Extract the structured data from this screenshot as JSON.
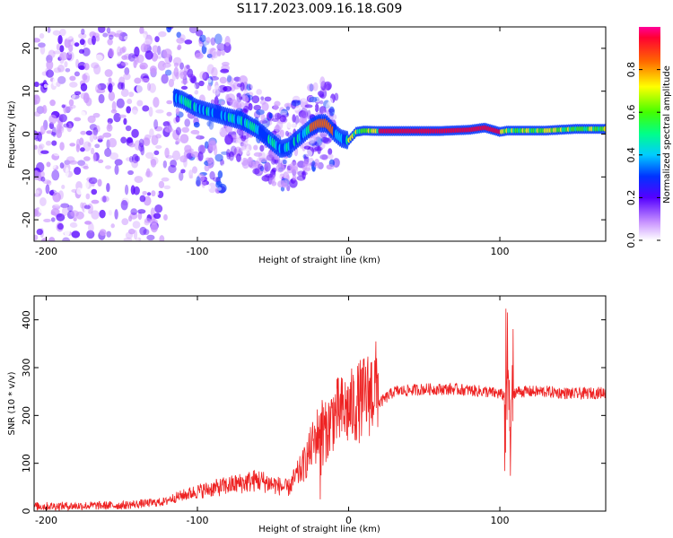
{
  "title": "S117.2023.009.16.18.G09",
  "spectrogram": {
    "chart_data": {
      "type": "heatmap",
      "title": "S117.2023.009.16.18.G09",
      "xlabel": "Height of straight line (km)",
      "ylabel": "Frequency (Hz)",
      "xlim": [
        -208,
        170
      ],
      "ylim": [
        -25,
        25
      ],
      "xticks": [
        -200,
        -100,
        0,
        100
      ],
      "yticks": [
        -20,
        -10,
        0,
        10,
        20
      ],
      "xtick_labels": [
        "-200",
        "-100",
        "0",
        "100"
      ],
      "ytick_labels": [
        "-20",
        "-10",
        "0",
        "10",
        "20"
      ],
      "ridge_frequency": {
        "x": [
          -120,
          -110,
          -100,
          -90,
          -80,
          -70,
          -60,
          -50,
          -45,
          -40,
          -35,
          -30,
          -25,
          -20,
          -15,
          -10,
          -5,
          0,
          5,
          10,
          20,
          40,
          60,
          80,
          90,
          95,
          100,
          105,
          110,
          130,
          150,
          170
        ],
        "y": [
          9,
          8,
          6,
          5,
          4,
          3,
          1,
          -2,
          -3.5,
          -3,
          -1.5,
          0,
          1.5,
          2.5,
          2.5,
          0.5,
          -1,
          -1.5,
          0.5,
          0.8,
          0.7,
          0.7,
          0.7,
          1,
          1.5,
          1,
          0.5,
          0.8,
          0.8,
          0.8,
          1.2,
          1.2
        ]
      }
    },
    "colorbar": {
      "label": "Normalized spectral amplitude",
      "ticks": [
        0.0,
        0.2,
        0.4,
        0.6,
        0.8
      ],
      "tick_labels": [
        "0.0",
        "0.2",
        "0.4",
        "0.6",
        "0.8"
      ],
      "range": [
        0,
        1
      ]
    }
  },
  "snr": {
    "chart_data": {
      "type": "line",
      "xlabel": "Height of straight line (km)",
      "ylabel": "SNR (10 * v/v)",
      "xlim": [
        -208,
        170
      ],
      "ylim": [
        0,
        450
      ],
      "xticks": [
        -200,
        -100,
        0,
        100
      ],
      "yticks": [
        0,
        100,
        200,
        300,
        400
      ],
      "xtick_labels": [
        "-200",
        "-100",
        "0",
        "100"
      ],
      "ytick_labels": [
        "0",
        "100",
        "200",
        "300",
        "400"
      ],
      "color": "#ee2222",
      "envelope": {
        "x": [
          -208,
          -150,
          -120,
          -100,
          -80,
          -60,
          -40,
          -30,
          -20,
          -18,
          -15,
          -10,
          -5,
          0,
          10,
          20,
          30,
          50,
          70,
          90,
          100,
          104,
          106,
          108,
          110,
          130,
          150,
          170
        ],
        "y": [
          10,
          12,
          20,
          35,
          45,
          55,
          40,
          80,
          140,
          150,
          140,
          170,
          175,
          180,
          200,
          225,
          250,
          255,
          255,
          250,
          245,
          240,
          280,
          230,
          250,
          250,
          245,
          248
        ]
      }
    }
  }
}
